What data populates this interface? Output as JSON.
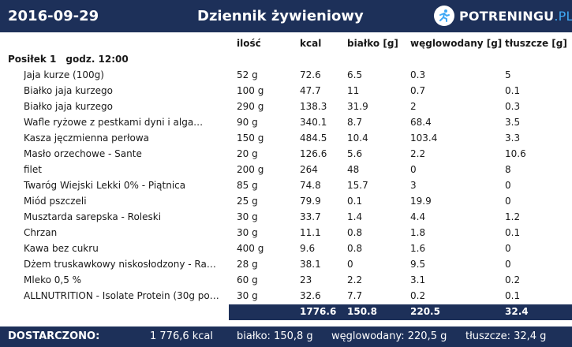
{
  "header": {
    "date": "2016-09-29",
    "title": "Dziennik żywieniowy",
    "logo_main": "POTRENINGU",
    "logo_suffix": ".PL"
  },
  "columns": {
    "qty": "ilość",
    "kcal": "kcal",
    "protein": "białko [g]",
    "carbs": "węglowodany [g]",
    "fat": "tłuszcze [g]"
  },
  "meal": {
    "name": "Posiłek 1",
    "time": "godz. 12:00"
  },
  "items": [
    {
      "name": "Jaja kurze (100g)",
      "qty": "52 g",
      "kcal": "72.6",
      "protein": "6.5",
      "carbs": "0.3",
      "fat": "5"
    },
    {
      "name": "Białko jaja kurzego",
      "qty": "100 g",
      "kcal": "47.7",
      "protein": "11",
      "carbs": "0.7",
      "fat": "0.1"
    },
    {
      "name": "Białko jaja kurzego",
      "qty": "290 g",
      "kcal": "138.3",
      "protein": "31.9",
      "carbs": "2",
      "fat": "0.3"
    },
    {
      "name": "Wafle ryżowe z pestkami dyni i alga…",
      "qty": "90 g",
      "kcal": "340.1",
      "protein": "8.7",
      "carbs": "68.4",
      "fat": "3.5"
    },
    {
      "name": "Kasza jęczmienna perłowa",
      "qty": "150 g",
      "kcal": "484.5",
      "protein": "10.4",
      "carbs": "103.4",
      "fat": "3.3"
    },
    {
      "name": "Masło orzechowe - Sante",
      "qty": "20 g",
      "kcal": "126.6",
      "protein": "5.6",
      "carbs": "2.2",
      "fat": "10.6"
    },
    {
      "name": "filet",
      "qty": "200 g",
      "kcal": "264",
      "protein": "48",
      "carbs": "0",
      "fat": "8"
    },
    {
      "name": "Twaróg Wiejski Lekki 0% - Piątnica",
      "qty": "85 g",
      "kcal": "74.8",
      "protein": "15.7",
      "carbs": "3",
      "fat": "0"
    },
    {
      "name": "Miód pszczeli",
      "qty": "25 g",
      "kcal": "79.9",
      "protein": "0.1",
      "carbs": "19.9",
      "fat": "0"
    },
    {
      "name": "Musztarda sarepska - Roleski",
      "qty": "30 g",
      "kcal": "33.7",
      "protein": "1.4",
      "carbs": "4.4",
      "fat": "1.2"
    },
    {
      "name": "Chrzan",
      "qty": "30 g",
      "kcal": "11.1",
      "protein": "0.8",
      "carbs": "1.8",
      "fat": "0.1"
    },
    {
      "name": "Kawa bez cukru",
      "qty": "400 g",
      "kcal": "9.6",
      "protein": "0.8",
      "carbs": "1.6",
      "fat": "0"
    },
    {
      "name": "Dżem truskawkowy niskosłodzony - Ra…",
      "qty": "28 g",
      "kcal": "38.1",
      "protein": "0",
      "carbs": "9.5",
      "fat": "0"
    },
    {
      "name": "Mleko  0,5 %",
      "qty": "60 g",
      "kcal": "23",
      "protein": "2.2",
      "carbs": "3.1",
      "fat": "0.2"
    },
    {
      "name": "ALLNUTRITION - Isolate Protein  (30g po…",
      "qty": "30 g",
      "kcal": "32.6",
      "protein": "7.7",
      "carbs": "0.2",
      "fat": "0.1"
    }
  ],
  "totals": {
    "kcal": "1776.6",
    "protein": "150.8",
    "carbs": "220.5",
    "fat": "32.4"
  },
  "footer": {
    "label": "DOSTARCZONO:",
    "kcal": "1 776,6 kcal",
    "protein": "białko: 150,8 g",
    "carbs": "węglowodany: 220,5 g",
    "fat": "tłuszcze: 32,4 g"
  },
  "colors": {
    "header_bg": "#1d3059",
    "logo_accent": "#3fa9f5"
  }
}
